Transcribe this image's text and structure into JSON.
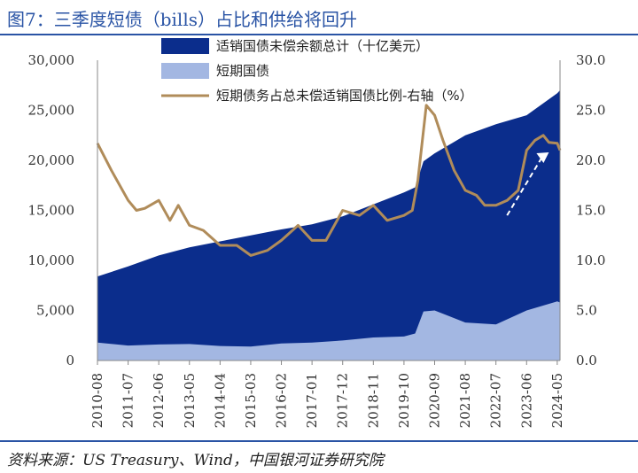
{
  "title": "图7：三季度短债（bills）占比和供给将回升",
  "source": "资料来源：US Treasury、Wind，中国银河证券研究院",
  "colors": {
    "total": "#0b2d8c",
    "bills": "#a3b7e2",
    "ratio": "#b08c5a",
    "arrow": "#ffffff",
    "accent": "#2a54a5"
  },
  "chart_data": {
    "type": "area",
    "legend_placement": "top-center",
    "grid": false,
    "ylim_left": [
      0,
      30000
    ],
    "ylim_right": [
      0,
      30
    ],
    "left_ticks": [
      "0",
      "5,000",
      "10,000",
      "15,000",
      "20,000",
      "25,000",
      "30,000"
    ],
    "right_ticks": [
      "0.0",
      "5.0",
      "10.0",
      "15.0",
      "20.0",
      "25.0",
      "30.0"
    ],
    "x_labels": [
      "2010-08",
      "2011-07",
      "2012-06",
      "2013-05",
      "2014-04",
      "2015-03",
      "2016-02",
      "2017-01",
      "2017-12",
      "2018-11",
      "2019-10",
      "2020-09",
      "2021-08",
      "2022-07",
      "2023-06",
      "2024-05"
    ],
    "series": [
      {
        "name": "适销国债未偿余额总计（十亿美元）",
        "type": "area",
        "axis": "left",
        "x": [
          "2010-08",
          "2011-07",
          "2012-06",
          "2013-05",
          "2014-04",
          "2015-03",
          "2016-02",
          "2017-01",
          "2017-12",
          "2018-11",
          "2019-10",
          "2020-02",
          "2020-05",
          "2020-09",
          "2021-08",
          "2022-07",
          "2023-06",
          "2024-05",
          "2024-06"
        ],
        "values": [
          8400,
          9400,
          10500,
          11300,
          11900,
          12500,
          13100,
          13600,
          14400,
          15600,
          16800,
          17300,
          19900,
          20700,
          22500,
          23600,
          24500,
          26700,
          27000
        ]
      },
      {
        "name": "短期国债",
        "type": "area",
        "axis": "left",
        "x": [
          "2010-08",
          "2011-07",
          "2012-06",
          "2013-05",
          "2014-04",
          "2015-03",
          "2016-02",
          "2017-01",
          "2017-12",
          "2018-11",
          "2019-10",
          "2020-02",
          "2020-05",
          "2020-09",
          "2021-08",
          "2022-07",
          "2023-06",
          "2024-05",
          "2024-06"
        ],
        "values": [
          1800,
          1500,
          1600,
          1650,
          1450,
          1400,
          1700,
          1800,
          2000,
          2300,
          2400,
          2700,
          4900,
          5000,
          3800,
          3600,
          5000,
          5900,
          5800
        ]
      },
      {
        "name": "短期债务占总未偿适销国债比例-右轴（%）",
        "type": "line",
        "axis": "right",
        "x": [
          "2010-08",
          "2011-01",
          "2011-07",
          "2011-10",
          "2012-01",
          "2012-06",
          "2012-10",
          "2013-01",
          "2013-05",
          "2013-10",
          "2014-04",
          "2014-10",
          "2015-03",
          "2015-09",
          "2016-02",
          "2016-08",
          "2017-01",
          "2017-06",
          "2017-12",
          "2018-06",
          "2018-11",
          "2019-04",
          "2019-10",
          "2020-01",
          "2020-03",
          "2020-06",
          "2020-09",
          "2020-12",
          "2021-04",
          "2021-08",
          "2021-12",
          "2022-03",
          "2022-07",
          "2022-11",
          "2023-03",
          "2023-06",
          "2023-09",
          "2023-12",
          "2024-02",
          "2024-05",
          "2024-06"
        ],
        "values": [
          21.7,
          19.0,
          16.0,
          15.0,
          15.2,
          16.0,
          14.0,
          15.5,
          13.5,
          13.0,
          11.5,
          11.5,
          10.5,
          11.0,
          12.0,
          13.5,
          12.0,
          12.0,
          15.0,
          14.5,
          15.5,
          14.0,
          14.5,
          15.0,
          18.0,
          25.5,
          24.5,
          22.0,
          19.0,
          17.0,
          16.5,
          15.5,
          15.5,
          16.0,
          17.0,
          21.0,
          22.0,
          22.5,
          21.8,
          21.7,
          21.0
        ]
      }
    ]
  }
}
